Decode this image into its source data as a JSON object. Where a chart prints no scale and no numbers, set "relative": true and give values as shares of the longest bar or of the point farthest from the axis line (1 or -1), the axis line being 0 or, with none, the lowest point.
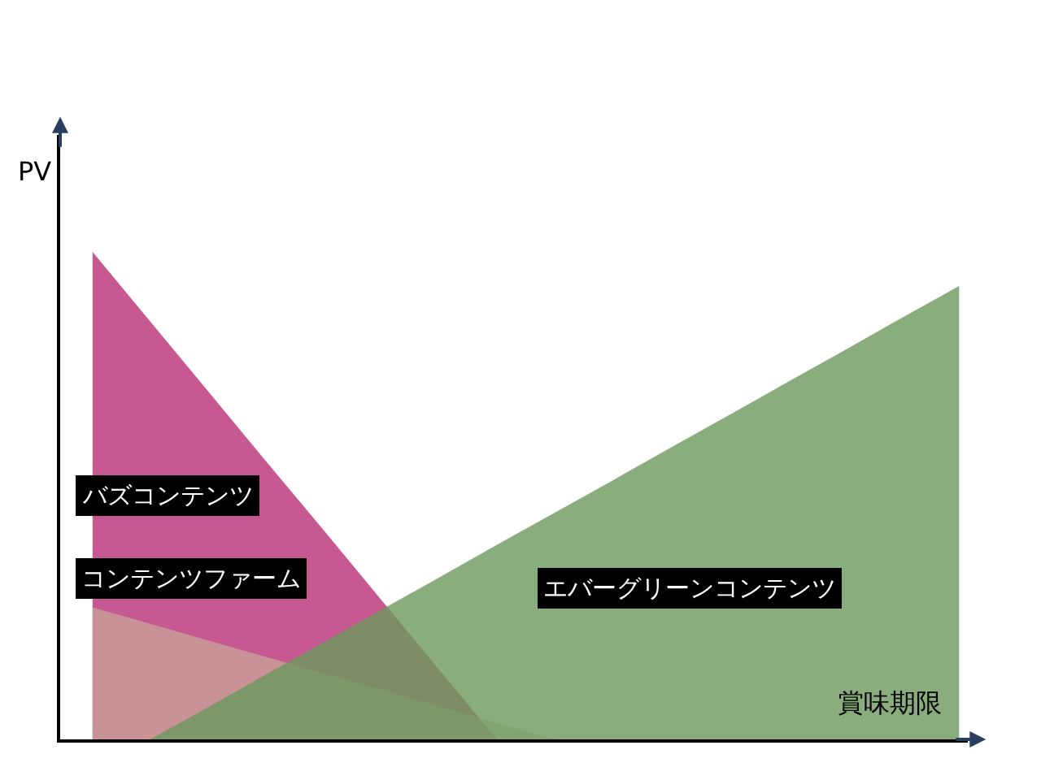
{
  "chart_data": {
    "type": "area",
    "relative": true,
    "xlabel": "賞味期限",
    "ylabel": "PV",
    "categories": [
      null,
      null,
      null,
      null,
      null,
      null,
      null,
      null,
      null,
      null,
      null,
      null,
      null,
      null,
      null,
      null
    ],
    "series": [
      {
        "color": "#c4508c",
        "values": [
          1,
          0.857,
          0.714,
          0.571,
          0.429,
          0.286,
          0.143,
          0,
          null,
          null,
          null,
          null,
          null,
          null,
          null,
          null
        ]
      },
      {
        "color": "#c9b99b",
        "values": [
          0.271,
          0.237,
          0.203,
          0.169,
          0.136,
          0.102,
          0.068,
          0.034,
          0,
          null,
          null,
          null,
          null,
          null,
          null,
          null
        ]
      },
      {
        "color": "#6b985c",
        "values": [
          null,
          0,
          0.066,
          0.133,
          0.199,
          0.266,
          0.332,
          0.399,
          0.465,
          0.531,
          0.598,
          0.664,
          0.731,
          0.797,
          0.864,
          0.93
        ]
      }
    ],
    "annotations": [
      "バズコンテンツ",
      "コンテンツファーム",
      "エバーグリーンコンテンツ"
    ]
  }
}
